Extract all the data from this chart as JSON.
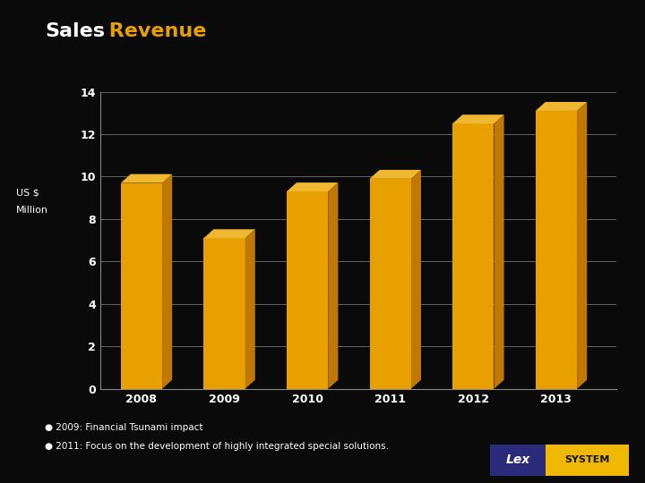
{
  "title_sales": "Sales",
  "title_revenue": " Revenue",
  "ylabel_line1": "US $",
  "ylabel_line2": "Million",
  "years": [
    "2008",
    "2009",
    "2010",
    "2011",
    "2012",
    "2013"
  ],
  "values": [
    9.7,
    7.1,
    9.3,
    9.9,
    12.5,
    13.1
  ],
  "bar_color_front": "#E8A000",
  "bar_color_side": "#C07800",
  "bar_color_top": "#F0B830",
  "bg_color": "#0A0A0A",
  "text_color": "#FFFFFF",
  "grid_color": "#888888",
  "ylim": [
    0,
    14
  ],
  "yticks": [
    0,
    2,
    4,
    6,
    8,
    10,
    12,
    14
  ],
  "note1": "● 2009: Financial Tsunami impact",
  "note2": "● 2011: Focus on the development of highly integrated special solutions.",
  "lex_bg": "#2B2B7B",
  "lex_text": "Lex",
  "sys_bg": "#F0B800",
  "sys_text": "SYSTEM",
  "title_fontsize": 16,
  "tick_fontsize": 9,
  "note_fontsize": 7.5
}
